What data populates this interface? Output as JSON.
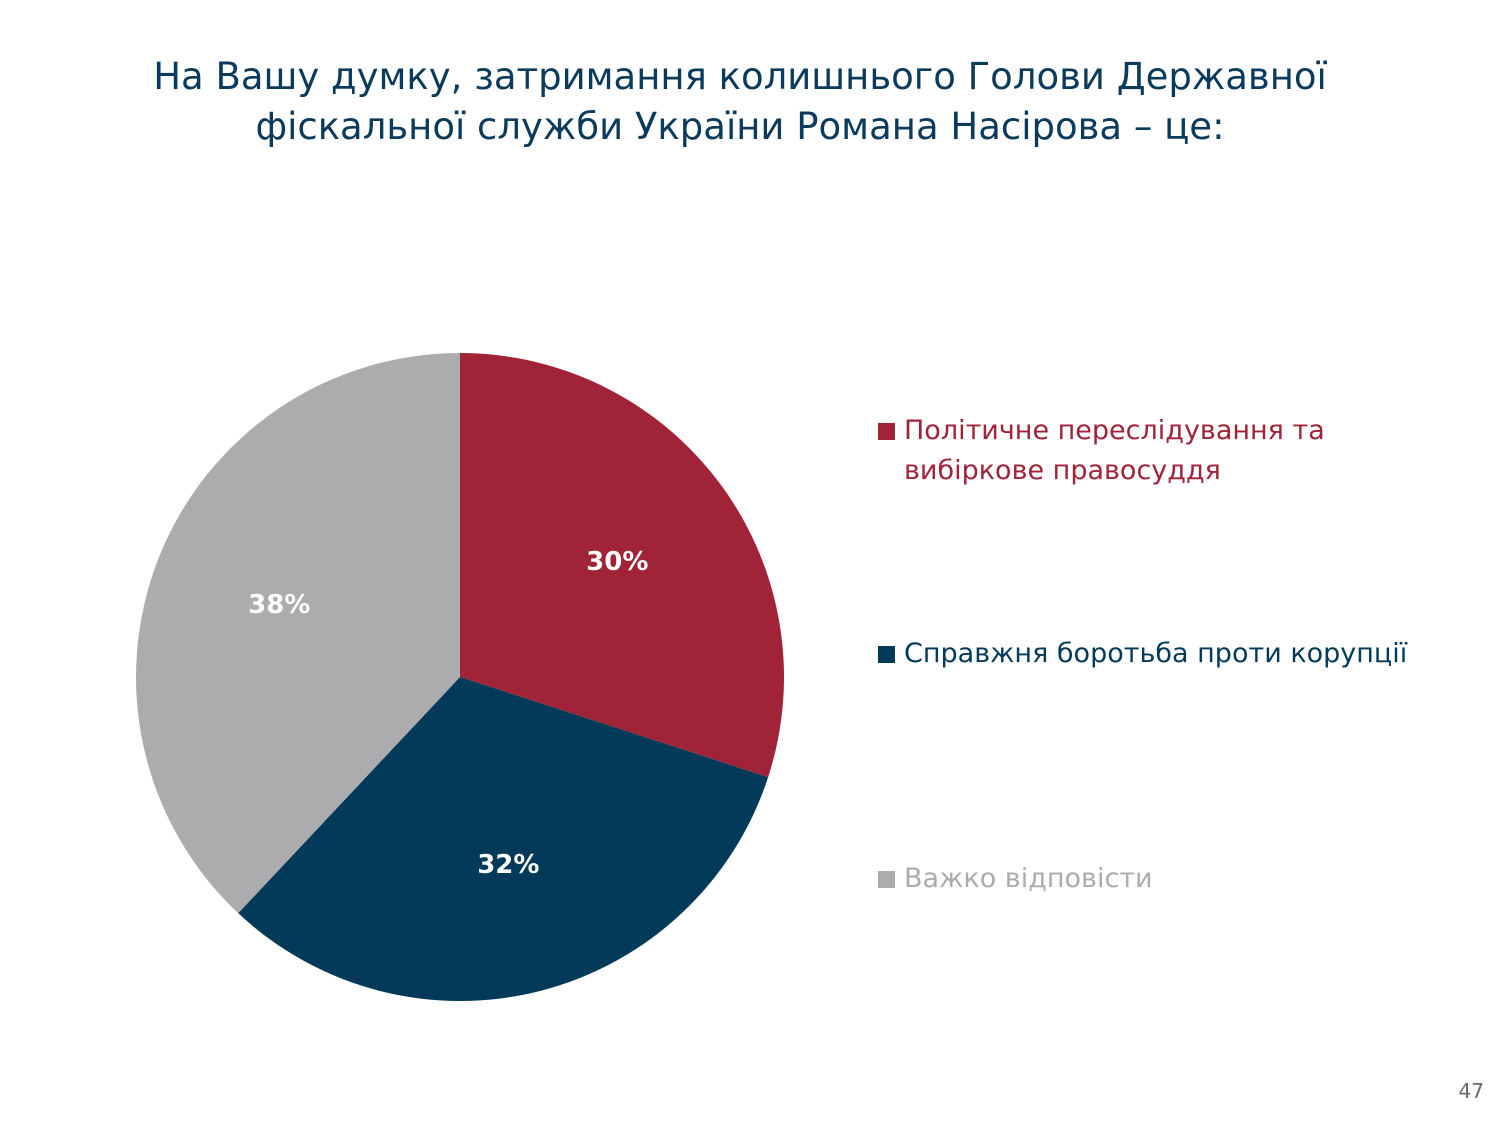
{
  "title": {
    "line1": "На Вашу думку, затримання колишнього Голови Державної",
    "line2": "фіскальної служби України Романа Насірова – це:"
  },
  "chart_data": {
    "type": "pie",
    "title": "На Вашу думку, затримання колишнього Голови Державної фіскальної служби України Романа Насірова – це:",
    "categories": [
      "Політичне переслідування та вибіркове правосуддя",
      "Справжня боротьба проти корупції",
      "Важко відповісти"
    ],
    "values": [
      30,
      32,
      38
    ],
    "labels": [
      "30%",
      "32%",
      "38%"
    ],
    "colors": [
      "#a02337",
      "#033a5a",
      "#acacae"
    ],
    "legend_position": "right"
  },
  "legend": {
    "items": [
      {
        "label": "Політичне переслідування та\nвибіркове правосуддя",
        "color": "#a02337"
      },
      {
        "label": "Справжня боротьба проти корупції",
        "color": "#033a5a"
      },
      {
        "label": "Важко відповісти",
        "color": "#acacae"
      }
    ]
  },
  "page_number": "47"
}
